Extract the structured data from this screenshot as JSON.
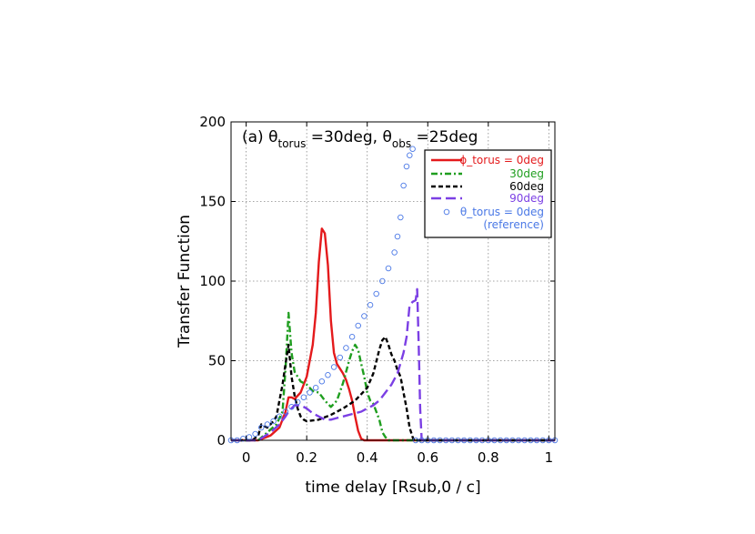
{
  "chart_data": {
    "type": "line",
    "xlabel": "time delay [Rsub,0 / c]",
    "ylabel": "Transfer Function",
    "xlim": [
      -0.05,
      1.02
    ],
    "ylim": [
      0,
      200
    ],
    "xticks": [
      "0",
      "0.2",
      "0.4",
      "0.6",
      "0.8",
      "1"
    ],
    "yticks": [
      "0",
      "50",
      "100",
      "150",
      "200"
    ],
    "grid": true,
    "legend_position": "top-right",
    "annotation": {
      "prefix": "(a) ",
      "theta1": "θ",
      "sub1": "torus",
      "mid": " =30deg, ",
      "theta2": "θ",
      "sub2": "obs",
      "end": " =25deg"
    },
    "series": [
      {
        "name": "ϕ_torus = 0deg",
        "color": "#e41a1c",
        "style": "solid",
        "x": [
          -0.05,
          0.04,
          0.08,
          0.11,
          0.13,
          0.14,
          0.15,
          0.16,
          0.18,
          0.2,
          0.22,
          0.23,
          0.24,
          0.25,
          0.26,
          0.27,
          0.28,
          0.29,
          0.3,
          0.31,
          0.32,
          0.33,
          0.34,
          0.35,
          0.36,
          0.37,
          0.38,
          0.39,
          1.02
        ],
        "y": [
          0,
          0,
          3,
          8,
          18,
          27,
          27,
          26,
          30,
          40,
          60,
          80,
          112,
          133,
          130,
          110,
          75,
          55,
          48,
          45,
          42,
          38,
          32,
          25,
          15,
          6,
          1,
          0,
          0
        ]
      },
      {
        "name": "30deg",
        "color": "#1f9e1f",
        "style": "dashdot",
        "x": [
          -0.05,
          0.04,
          0.07,
          0.1,
          0.12,
          0.13,
          0.14,
          0.15,
          0.16,
          0.18,
          0.2,
          0.22,
          0.24,
          0.26,
          0.28,
          0.3,
          0.32,
          0.34,
          0.35,
          0.36,
          0.37,
          0.38,
          0.39,
          0.4,
          0.41,
          0.42,
          0.44,
          0.45,
          0.46,
          0.47,
          0.48,
          0.49,
          1.02
        ],
        "y": [
          0,
          0,
          5,
          10,
          18,
          45,
          80,
          55,
          43,
          37,
          35,
          31,
          30,
          25,
          21,
          25,
          36,
          50,
          56,
          60,
          57,
          48,
          40,
          30,
          25,
          23,
          13,
          5,
          2,
          0,
          0,
          0,
          0
        ]
      },
      {
        "name": "60deg",
        "color": "#000000",
        "style": "dash",
        "x": [
          -0.05,
          0.02,
          0.04,
          0.05,
          0.06,
          0.07,
          0.08,
          0.09,
          0.1,
          0.11,
          0.12,
          0.13,
          0.14,
          0.15,
          0.16,
          0.17,
          0.18,
          0.19,
          0.2,
          0.24,
          0.28,
          0.32,
          0.36,
          0.4,
          0.42,
          0.44,
          0.45,
          0.46,
          0.47,
          0.48,
          0.49,
          0.5,
          0.51,
          0.52,
          0.53,
          0.54,
          0.55,
          0.555,
          0.56,
          1.02
        ],
        "y": [
          0,
          0,
          3,
          10,
          9,
          8,
          10,
          12,
          15,
          25,
          35,
          48,
          60,
          40,
          28,
          20,
          15,
          13,
          12,
          13,
          16,
          20,
          25,
          33,
          42,
          57,
          63,
          65,
          60,
          54,
          50,
          44,
          40,
          30,
          20,
          8,
          2,
          0,
          0,
          0
        ]
      },
      {
        "name": "90deg",
        "color": "#7b3fe4",
        "style": "longdash",
        "x": [
          -0.05,
          0.04,
          0.08,
          0.11,
          0.13,
          0.14,
          0.16,
          0.18,
          0.2,
          0.22,
          0.24,
          0.26,
          0.28,
          0.3,
          0.32,
          0.34,
          0.36,
          0.38,
          0.4,
          0.42,
          0.44,
          0.46,
          0.48,
          0.5,
          0.52,
          0.53,
          0.54,
          0.55,
          0.56,
          0.565,
          0.57,
          0.575,
          0.58,
          1.02
        ],
        "y": [
          0,
          0,
          5,
          10,
          15,
          18,
          22,
          22,
          20,
          17,
          15,
          13,
          13,
          14,
          15,
          16,
          17,
          18,
          20,
          22,
          25,
          30,
          35,
          42,
          55,
          65,
          85,
          87,
          88,
          95,
          60,
          20,
          0,
          0
        ]
      },
      {
        "name": "θ_torus = 0deg",
        "name2": "(reference)",
        "color": "#4a78e6",
        "style": "circles",
        "x": [
          -0.05,
          -0.03,
          -0.01,
          0.01,
          0.03,
          0.05,
          0.07,
          0.09,
          0.11,
          0.13,
          0.15,
          0.17,
          0.19,
          0.21,
          0.23,
          0.25,
          0.27,
          0.29,
          0.31,
          0.33,
          0.35,
          0.37,
          0.39,
          0.41,
          0.43,
          0.45,
          0.47,
          0.49,
          0.5,
          0.51,
          0.52,
          0.53,
          0.54,
          0.55,
          0.56,
          0.58,
          0.6,
          0.62,
          0.64,
          0.66,
          0.68,
          0.7,
          0.72,
          0.74,
          0.76,
          0.78,
          0.8,
          0.82,
          0.84,
          0.86,
          0.88,
          0.9,
          0.92,
          0.94,
          0.96,
          0.98,
          1.0,
          1.02
        ],
        "y": [
          0,
          0,
          1,
          2,
          4,
          8,
          10,
          12,
          15,
          18,
          21,
          24,
          27,
          30,
          33,
          37,
          41,
          46,
          52,
          58,
          65,
          72,
          78,
          85,
          92,
          100,
          108,
          118,
          128,
          140,
          160,
          172,
          179,
          183,
          0,
          0,
          0,
          0,
          0,
          0,
          0,
          0,
          0,
          0,
          0,
          0,
          0,
          0,
          0,
          0,
          0,
          0,
          0,
          0,
          0,
          0,
          0,
          0
        ]
      }
    ]
  }
}
